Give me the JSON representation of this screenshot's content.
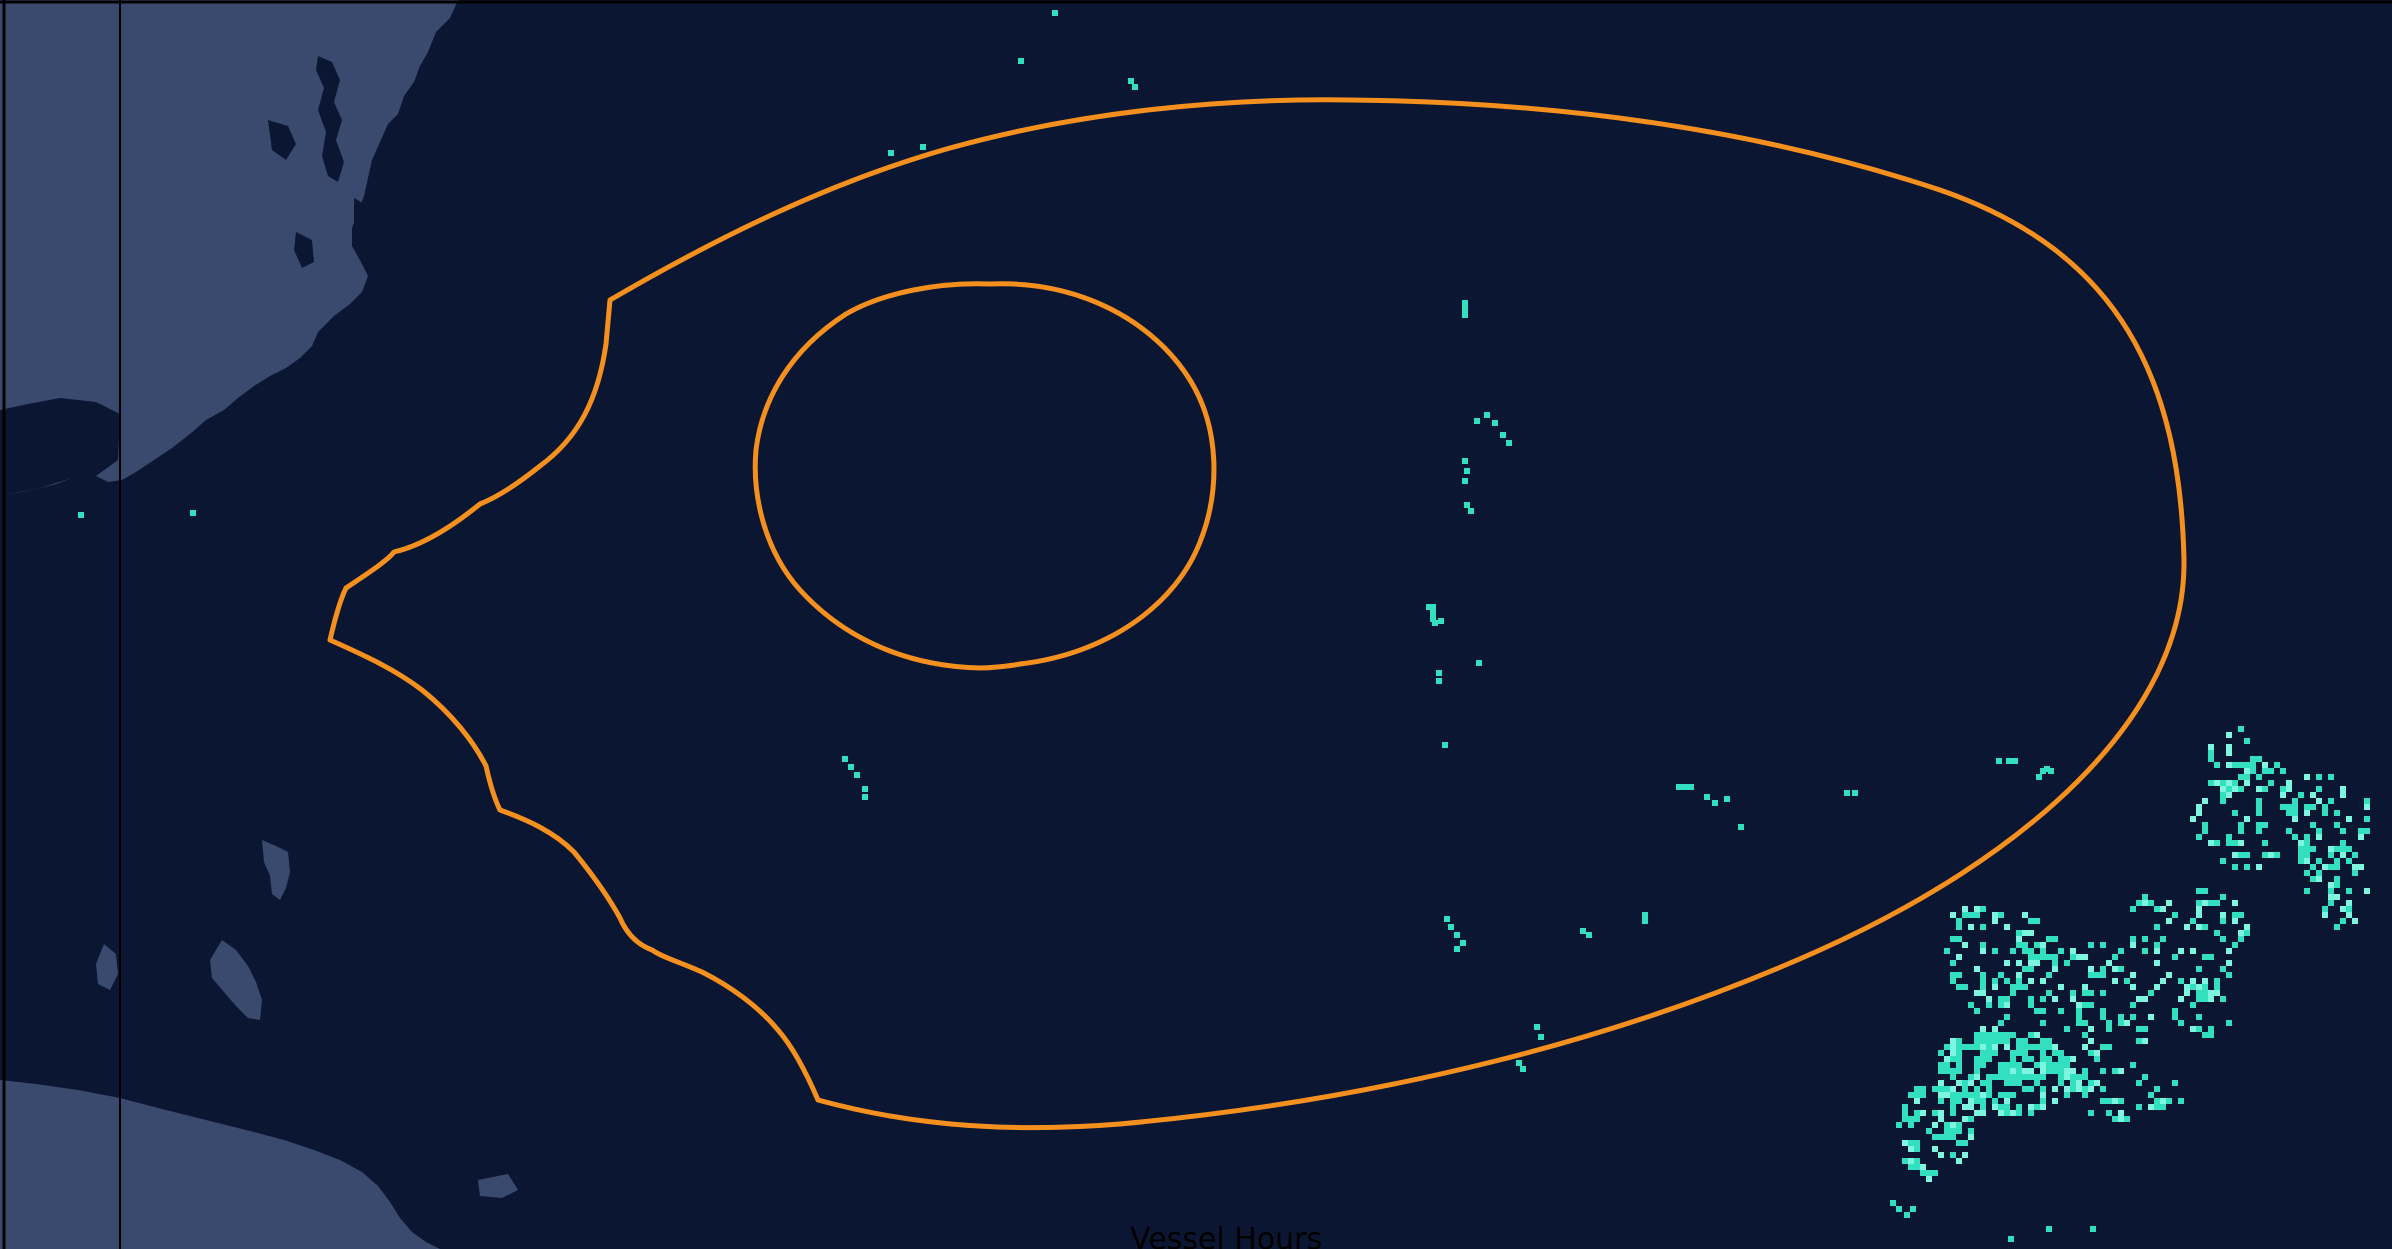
{
  "map": {
    "legend_label": "Vessel Hours",
    "colors": {
      "ocean": "#0b1633",
      "land": "#3a4a6e",
      "boundary": "#f5901f",
      "activity": "#32e0c0",
      "activity_bright": "#7ef5df",
      "frame": "#000000"
    }
  }
}
